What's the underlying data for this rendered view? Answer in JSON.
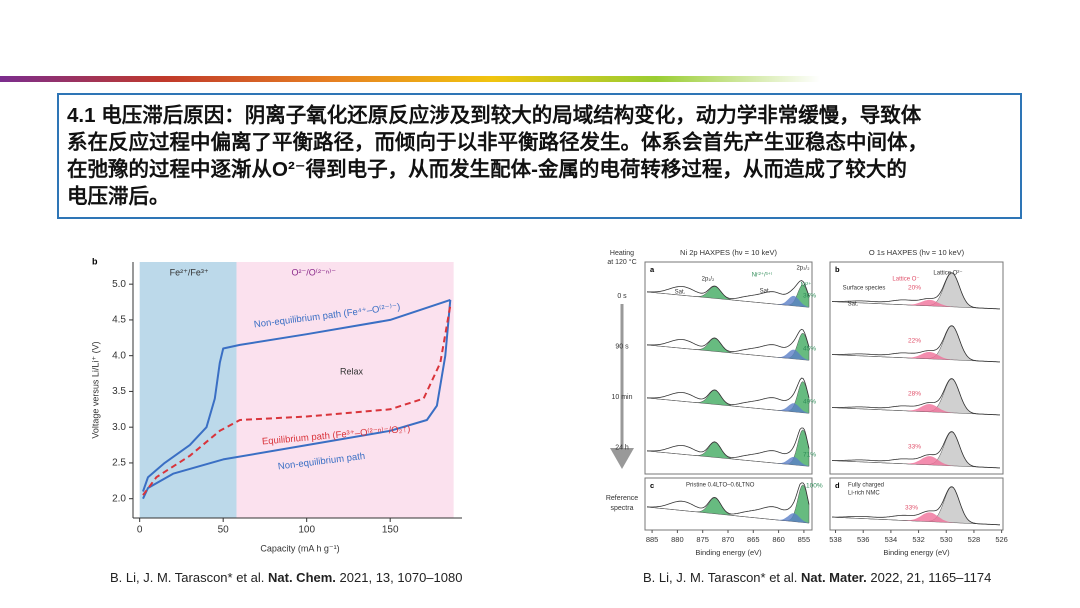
{
  "slide_text": [
    "4.1 电压滞后原因：阴离子氧化还原反应涉及到较大的局域结构变化，动力学非常缓慢，导致体",
    "系在反应过程中偏离了平衡路径，而倾向于以非平衡路径发生。体系会首先产生亚稳态中间体，",
    "在弛豫的过程中逐渐从O²⁻得到电子，从而发生配体-金属的电荷转移过程，从而造成了较大的",
    "电压滞后。"
  ],
  "left_figure": {
    "panel_label": "b",
    "type": "line",
    "xlabel": "Capacity (mA h g⁻¹)",
    "ylabel": "Voltage versus Li/Li⁺ (V)",
    "xlim": [
      -4,
      193
    ],
    "ylim": [
      1.73,
      5.31
    ],
    "xticks": [
      0,
      50,
      100,
      150
    ],
    "yticks": [
      {
        "value": 2,
        "label": "2.0"
      },
      {
        "value": 2.5,
        "label": "2.5"
      },
      {
        "value": 3,
        "label": "3.0"
      },
      {
        "value": 3.5,
        "label": "3.5"
      },
      {
        "value": 4,
        "label": "4.0"
      },
      {
        "value": 4.5,
        "label": "4.5"
      },
      {
        "value": 5,
        "label": "5.0"
      }
    ],
    "regions": [
      {
        "label": "Fe²⁺/Fe³⁺",
        "x": [
          0,
          58
        ],
        "color": "#bcd9ea"
      },
      {
        "label": "O²⁻/O⁽²⁻ⁿ⁾⁻",
        "x": [
          58,
          188
        ],
        "color": "#fbe1ee"
      }
    ],
    "series": [
      {
        "name": "Non-equilibrium path (Fe⁴⁺–O⁽²⁻⁾⁻)",
        "color": "#3a6fc4",
        "dashed": false,
        "x": [
          2,
          5,
          15,
          30,
          40,
          45,
          48,
          50,
          60,
          100,
          150,
          186
        ],
        "y": [
          2.1,
          2.3,
          2.5,
          2.75,
          3.0,
          3.4,
          3.9,
          4.1,
          4.15,
          4.3,
          4.5,
          4.78
        ]
      },
      {
        "name": "Non-equilibrium path",
        "color": "#3a6fc4",
        "dashed": false,
        "x": [
          186,
          183,
          178,
          172,
          150,
          100,
          50,
          20,
          5,
          2
        ],
        "y": [
          4.78,
          4.0,
          3.3,
          3.1,
          2.95,
          2.75,
          2.55,
          2.35,
          2.15,
          2.0
        ]
      },
      {
        "name": "Equilibrium path (Fe³⁺–O⁽²⁻ⁿ⁾⁻/O₂↑)",
        "color": "#d9343b",
        "dashed": true,
        "x": [
          2,
          10,
          30,
          48,
          60,
          100,
          150,
          170,
          180,
          186
        ],
        "y": [
          2.05,
          2.3,
          2.6,
          2.95,
          3.1,
          3.15,
          3.25,
          3.4,
          3.9,
          4.7
        ]
      }
    ],
    "annotation": "Relax"
  },
  "right_figure": {
    "heating": [
      "Heating",
      "at 120 °C"
    ],
    "times": [
      "0 s",
      "90 s",
      "10 min",
      "24 h"
    ],
    "reference": [
      "Reference",
      "spectra"
    ],
    "ni": {
      "label_top": "a",
      "label_bottom": "c",
      "title": "Ni 2p HAXPES (hν = 10 keV)",
      "xlim": [
        886.4,
        853.4
      ],
      "xticks": [
        885,
        880,
        875,
        870,
        865,
        860,
        855
      ],
      "xlabel": "Binding energy (eV)",
      "percents": [
        "36%",
        "45%",
        "49%",
        "71%"
      ],
      "ref_percent": "100%",
      "ref_note": [
        "Pristine 0.4LTO–0.6LTNO"
      ],
      "peaks": [
        "Sat.",
        "2p₁/₂",
        "Ni⁽²⁺/³⁺⁾",
        "Sat.",
        "2p₃/₂",
        "Ni²⁺"
      ]
    },
    "o": {
      "label_top": "b",
      "label_bottom": "d",
      "title": "O 1s HAXPES (hν = 10 keV)",
      "xlim": [
        538.4,
        525.9
      ],
      "xticks": [
        538,
        536,
        534,
        532,
        530,
        528,
        526
      ],
      "xlabel": "Binding energy (eV)",
      "percents": [
        "20%",
        "22%",
        "28%",
        "33%"
      ],
      "ref_percent": "33%",
      "ref_note": [
        "Fully charged",
        "Li-rich NMC"
      ],
      "peaks": [
        "Lattice O²⁻",
        "Lattice O⁻",
        "Surface species",
        "Sat."
      ]
    }
  },
  "citations": [
    {
      "authors": "B. Li, J. M. Tarascon* et al.",
      "journal": "Nat. Chem.",
      "rest": "2021, 13, 1070–1080"
    },
    {
      "authors": "B. Li, J. M. Tarascon* et al.",
      "journal": "Nat. Mater.",
      "rest": "2022, 21, 1165–1174"
    }
  ]
}
